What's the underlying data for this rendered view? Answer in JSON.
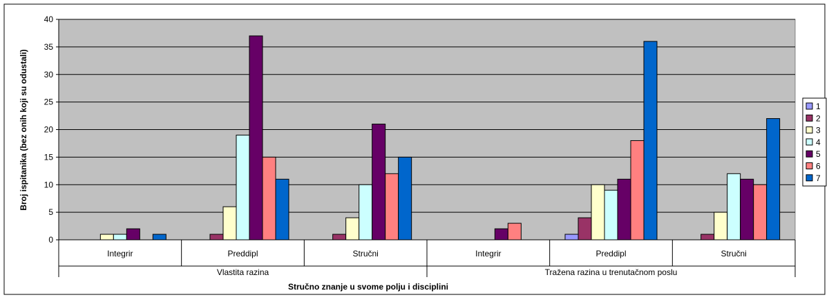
{
  "chart_data": {
    "type": "bar",
    "title": "",
    "xlabel": "Stručno znanje u  svome polju i disciplini",
    "ylabel": "Broj ispitanika (bez onih koji su odustali)",
    "ylim": [
      0,
      40
    ],
    "yticks": [
      0,
      5,
      10,
      15,
      20,
      25,
      30,
      35,
      40
    ],
    "categories": [
      "Integrir",
      "Preddipl",
      "Stručni",
      "Integrir",
      "Preddipl",
      "Stručni"
    ],
    "groups": [
      {
        "label": "Vlastita razina",
        "span": [
          0,
          2
        ]
      },
      {
        "label": "Tražena razina u trenutačnom poslu",
        "span": [
          3,
          5
        ]
      }
    ],
    "series": [
      {
        "name": "1",
        "color": "#9999FF",
        "values": [
          0,
          0,
          0,
          0,
          1,
          0
        ]
      },
      {
        "name": "2",
        "color": "#993366",
        "values": [
          0,
          1,
          1,
          0,
          4,
          1
        ]
      },
      {
        "name": "3",
        "color": "#FFFFCC",
        "values": [
          1,
          6,
          4,
          0,
          10,
          5
        ]
      },
      {
        "name": "4",
        "color": "#CCFFFF",
        "values": [
          1,
          19,
          10,
          0,
          9,
          12
        ]
      },
      {
        "name": "5",
        "color": "#660066",
        "values": [
          2,
          37,
          21,
          2,
          11,
          11
        ]
      },
      {
        "name": "6",
        "color": "#FF8080",
        "values": [
          0,
          15,
          12,
          3,
          18,
          10
        ]
      },
      {
        "name": "7",
        "color": "#0066CC",
        "values": [
          1,
          11,
          15,
          0,
          36,
          22
        ]
      }
    ],
    "plot_background": "#C0C0C0",
    "grid": true,
    "legend_position": "right"
  }
}
